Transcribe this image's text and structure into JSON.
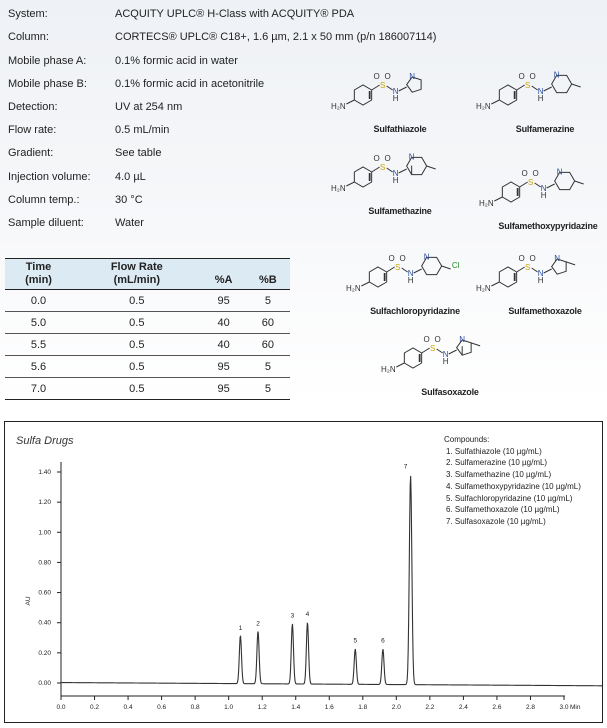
{
  "conditions": [
    {
      "label": "System:",
      "value": "ACQUITY UPLC® H-Class with ACQUITY® PDA"
    },
    {
      "label": "Column:",
      "value": "CORTECS® UPLC® C18+, 1.6 µm, 2.1 x 50 mm (p/n 186007114)"
    },
    {
      "label": "Mobile phase A:",
      "value": "0.1% formic acid in water"
    },
    {
      "label": "Mobile phase B:",
      "value": "0.1% formic acid in acetonitrile"
    },
    {
      "label": "Detection:",
      "value": "UV at 254 nm"
    },
    {
      "label": "Flow rate:",
      "value": "0.5 mL/min"
    },
    {
      "label": "Gradient:",
      "value": "See table"
    },
    {
      "label": "Injection volume:",
      "value": "4.0 µL"
    },
    {
      "label": "Column temp.:",
      "value": "30 °C"
    },
    {
      "label": "Sample diluent:",
      "value": "Water"
    }
  ],
  "gradient_table": {
    "headers": [
      [
        "Time",
        "(min)"
      ],
      [
        "Flow Rate",
        "(mL/min)"
      ],
      [
        "",
        "%A"
      ],
      [
        "",
        "%B"
      ]
    ],
    "rows": [
      [
        "0.0",
        "0.5",
        "95",
        "5"
      ],
      [
        "5.0",
        "0.5",
        "40",
        "60"
      ],
      [
        "5.5",
        "0.5",
        "40",
        "60"
      ],
      [
        "5.6",
        "0.5",
        "95",
        "5"
      ],
      [
        "7.0",
        "0.5",
        "95",
        "5"
      ]
    ],
    "header_bg": "#dceaf4"
  },
  "structures": [
    {
      "name": "Sulfathiazole",
      "ring": "thiazole"
    },
    {
      "name": "Sulfamerazine",
      "ring": "methylpyrimidine"
    },
    {
      "name": "Sulfamethazine",
      "ring": "dimethylpyrimidine"
    },
    {
      "name": "Sulfamethoxypyridazine",
      "ring": "methoxypyridazine"
    },
    {
      "name": "Sulfachloropyridazine",
      "ring": "chloropyridazine"
    },
    {
      "name": "Sulfamethoxazole",
      "ring": "methylisoxazole"
    },
    {
      "name": "Sulfasoxazole",
      "ring": "dimethylisoxazole"
    }
  ],
  "chart_data": {
    "type": "line",
    "title": "Sulfa Drugs",
    "xlabel": "Min",
    "ylabel": "AU",
    "xlim": [
      0.0,
      3.0
    ],
    "ylim": [
      -0.08,
      1.46
    ],
    "xticks": [
      "0.0",
      "0.2",
      "0.4",
      "0.6",
      "0.8",
      "1.0",
      "1.2",
      "1.4",
      "1.6",
      "1.8",
      "2.0",
      "2.2",
      "2.4",
      "2.6",
      "2.8",
      "3.0"
    ],
    "yticks": [
      "0.00",
      "0.20",
      "0.40",
      "0.60",
      "0.80",
      "1.00",
      "1.20",
      "1.40"
    ],
    "grid": false,
    "legend_placement": "top-right",
    "legend_title": "Compounds:",
    "legend": [
      "1. Sulfathiazole (10 µg/mL)",
      "2. Sulfamerazine (10 µg/mL)",
      "3. Sulfamethazine (10 µg/mL)",
      "4. Sulfamethoxypyridazine (10 µg/mL)",
      "5. Sulfachloropyridazine (10 µg/mL)",
      "6. Sulfamethoxazole (10 µg/mL)",
      "7. Sulfasoxazole (10 µg/mL)"
    ],
    "peaks": [
      {
        "label": "1",
        "rt": 1.07,
        "height": 0.32
      },
      {
        "label": "2",
        "rt": 1.175,
        "height": 0.35
      },
      {
        "label": "3",
        "rt": 1.38,
        "height": 0.4
      },
      {
        "label": "4",
        "rt": 1.47,
        "height": 0.41
      },
      {
        "label": "5",
        "rt": 1.755,
        "height": 0.235
      },
      {
        "label": "6",
        "rt": 1.92,
        "height": 0.235
      },
      {
        "label": "7",
        "rt": 2.085,
        "height": 1.39
      }
    ],
    "baseline": [
      {
        "x": 0.0,
        "y": 0.003
      },
      {
        "x": 3.0,
        "y": -0.017
      }
    ],
    "line_color": "#333333"
  }
}
